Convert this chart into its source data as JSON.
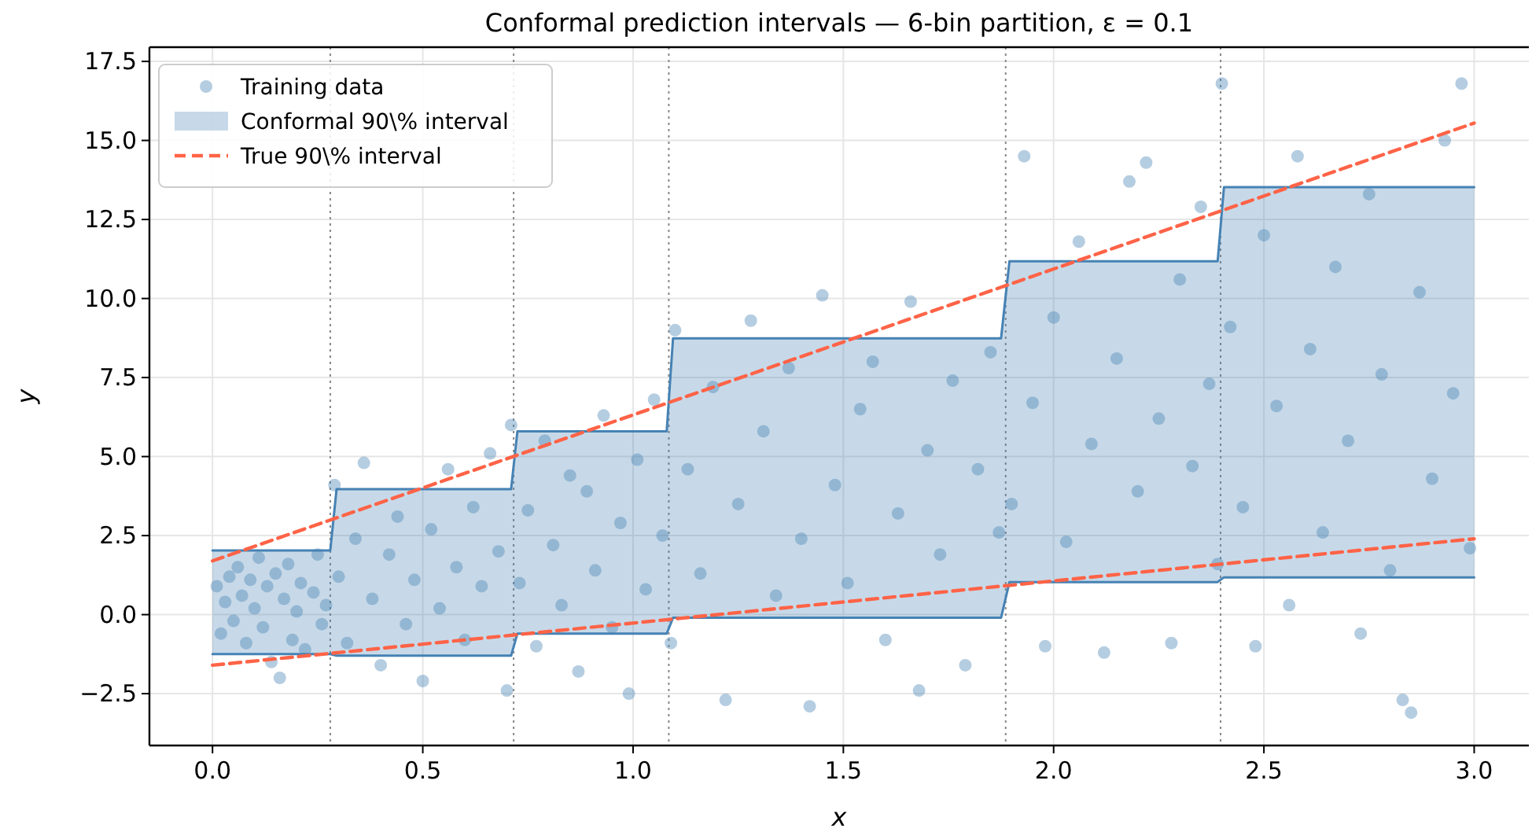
{
  "chart_data": {
    "type": "scatter",
    "title": "Conformal prediction intervals — 6-bin partition,  ε = 0.1",
    "xlabel": "x",
    "ylabel": "y",
    "xlim": [
      -0.15,
      3.13
    ],
    "ylim": [
      -4.14,
      17.95
    ],
    "xticks": [
      {
        "value": 0,
        "label": "0.0"
      },
      {
        "value": 0.5,
        "label": "0.5"
      },
      {
        "value": 1,
        "label": "1.0"
      },
      {
        "value": 1.5,
        "label": "1.5"
      },
      {
        "value": 2,
        "label": "2.0"
      },
      {
        "value": 2.5,
        "label": "2.5"
      },
      {
        "value": 3,
        "label": "3.0"
      }
    ],
    "yticks": [
      {
        "value": -2.5,
        "label": "−2.5"
      },
      {
        "value": 0,
        "label": "0.0"
      },
      {
        "value": 2.5,
        "label": "2.5"
      },
      {
        "value": 5,
        "label": "5.0"
      },
      {
        "value": 7.5,
        "label": "7.5"
      },
      {
        "value": 10,
        "label": "10.0"
      },
      {
        "value": 12.5,
        "label": "12.5"
      },
      {
        "value": 15,
        "label": "15.0"
      },
      {
        "value": 17.5,
        "label": "17.5"
      }
    ],
    "grid": true,
    "legend": "top left",
    "series": [
      {
        "type": "scatter",
        "name": "Training data",
        "color": "#4682b4",
        "marker": "circle",
        "x": [
          0.01,
          0.02,
          0.03,
          0.04,
          0.05,
          0.06,
          0.07,
          0.08,
          0.09,
          0.1,
          0.11,
          0.12,
          0.13,
          0.14,
          0.15,
          0.16,
          0.17,
          0.18,
          0.19,
          0.2,
          0.21,
          0.22,
          0.24,
          0.25,
          0.26,
          0.27,
          0.29,
          0.3,
          0.32,
          0.34,
          0.36,
          0.38,
          0.4,
          0.42,
          0.44,
          0.46,
          0.48,
          0.5,
          0.52,
          0.54,
          0.56,
          0.58,
          0.6,
          0.62,
          0.64,
          0.66,
          0.68,
          0.7,
          0.71,
          0.73,
          0.75,
          0.77,
          0.79,
          0.81,
          0.83,
          0.85,
          0.87,
          0.89,
          0.91,
          0.93,
          0.95,
          0.97,
          0.99,
          1.01,
          1.03,
          1.05,
          1.07,
          1.09,
          1.1,
          1.13,
          1.16,
          1.19,
          1.22,
          1.25,
          1.28,
          1.31,
          1.34,
          1.37,
          1.4,
          1.42,
          1.45,
          1.48,
          1.51,
          1.54,
          1.57,
          1.6,
          1.63,
          1.66,
          1.68,
          1.7,
          1.73,
          1.76,
          1.79,
          1.82,
          1.85,
          1.87,
          1.9,
          1.93,
          1.95,
          1.98,
          2.0,
          2.03,
          2.06,
          2.09,
          2.12,
          2.15,
          2.18,
          2.2,
          2.22,
          2.25,
          2.28,
          2.3,
          2.33,
          2.35,
          2.37,
          2.39,
          2.4,
          2.42,
          2.45,
          2.48,
          2.5,
          2.53,
          2.56,
          2.58,
          2.61,
          2.64,
          2.67,
          2.7,
          2.73,
          2.75,
          2.78,
          2.8,
          2.83,
          2.85,
          2.87,
          2.9,
          2.93,
          2.95,
          2.97,
          2.99
        ],
        "values": [
          0.9,
          -0.6,
          0.4,
          1.2,
          -0.2,
          1.5,
          0.6,
          -0.9,
          1.1,
          0.2,
          1.8,
          -0.4,
          0.9,
          -1.5,
          1.3,
          -2.0,
          0.5,
          1.6,
          -0.8,
          0.1,
          1.0,
          -1.1,
          0.7,
          1.9,
          -0.3,
          0.3,
          4.1,
          1.2,
          -0.9,
          2.4,
          4.8,
          0.5,
          -1.6,
          1.9,
          3.1,
          -0.3,
          1.1,
          -2.1,
          2.7,
          0.2,
          4.6,
          1.5,
          -0.8,
          3.4,
          0.9,
          5.1,
          2.0,
          -2.4,
          6.0,
          1.0,
          3.3,
          -1.0,
          5.5,
          2.2,
          0.3,
          4.4,
          -1.8,
          3.9,
          1.4,
          6.3,
          -0.4,
          2.9,
          -2.5,
          4.9,
          0.8,
          6.8,
          2.5,
          -0.9,
          9.0,
          4.6,
          1.3,
          7.2,
          -2.7,
          3.5,
          9.3,
          5.8,
          0.6,
          7.8,
          2.4,
          -2.9,
          10.1,
          4.1,
          1.0,
          6.5,
          8.0,
          -0.8,
          3.2,
          9.9,
          -2.4,
          5.2,
          1.9,
          7.4,
          -1.6,
          4.6,
          8.3,
          2.6,
          3.5,
          14.5,
          6.7,
          -1.0,
          9.4,
          2.3,
          11.8,
          5.4,
          -1.2,
          8.1,
          13.7,
          3.9,
          14.3,
          6.2,
          -0.9,
          10.6,
          4.7,
          12.9,
          7.3,
          1.6,
          16.8,
          9.1,
          3.4,
          -1.0,
          12.0,
          6.6,
          0.3,
          14.5,
          8.4,
          2.6,
          11.0,
          5.5,
          -0.6,
          13.3,
          7.6,
          1.4,
          -2.7,
          -3.1,
          10.2,
          4.3,
          15.0,
          7.0,
          16.8,
          2.1
        ]
      },
      {
        "type": "line",
        "name": "Conformal 90\\% interval",
        "color": "#4682b4",
        "line_style": "solid",
        "marker": "none",
        "x": [
          0,
          0.28,
          0.295,
          0.71,
          0.725,
          1.08,
          1.095,
          1.875,
          1.895,
          2.39,
          2.405,
          3.0
        ],
        "values": [
          2.03,
          2.03,
          3.97,
          3.97,
          5.8,
          5.8,
          8.74,
          8.74,
          11.18,
          11.18,
          13.52,
          13.52
        ],
        "lower": [
          -1.25,
          -1.25,
          -1.3,
          -1.3,
          -0.6,
          -0.6,
          -0.1,
          -0.1,
          1.03,
          1.03,
          1.18,
          1.18
        ],
        "upper": [
          2.03,
          2.03,
          3.97,
          3.97,
          5.8,
          5.8,
          8.74,
          8.74,
          11.18,
          11.18,
          13.52,
          13.52
        ]
      },
      {
        "type": "line",
        "color": "#4682b4",
        "line_style": "solid",
        "marker": "none",
        "x": [
          0,
          0.28,
          0.295,
          0.71,
          0.725,
          1.08,
          1.095,
          1.875,
          1.895,
          2.39,
          2.405,
          3.0
        ],
        "values": [
          -1.25,
          -1.25,
          -1.3,
          -1.3,
          -0.6,
          -0.6,
          -0.1,
          -0.1,
          1.03,
          1.03,
          1.18,
          1.18
        ]
      },
      {
        "type": "line",
        "name": "True 90\\% interval",
        "color": "#ff6347",
        "line_style": "dashed",
        "marker": "none",
        "x": [
          0,
          3
        ],
        "values": [
          1.7,
          15.55
        ]
      },
      {
        "type": "line",
        "color": "#ff6347",
        "line_style": "dashed",
        "marker": "none",
        "x": [
          0,
          3
        ],
        "values": [
          -1.6,
          2.4
        ]
      }
    ],
    "ref_lines": [
      {
        "axis": "x",
        "value": 0.28,
        "color": "#888888",
        "line_style": "dotted"
      },
      {
        "axis": "x",
        "value": 0.716,
        "color": "#888888",
        "line_style": "dotted"
      },
      {
        "axis": "x",
        "value": 1.085,
        "color": "#888888",
        "line_style": "dotted"
      },
      {
        "axis": "x",
        "value": 1.886,
        "color": "#888888",
        "line_style": "dotted"
      },
      {
        "axis": "x",
        "value": 2.397,
        "color": "#888888",
        "line_style": "dotted"
      }
    ]
  }
}
